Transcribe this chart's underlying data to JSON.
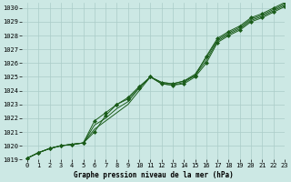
{
  "xlabel": "Graphe pression niveau de la mer (hPa)",
  "background_color": "#cce8e4",
  "grid_color": "#aaccc8",
  "line_color": "#1a5c1a",
  "xlim": [
    -0.5,
    23
  ],
  "ylim": [
    1019,
    1030.4
  ],
  "xticks": [
    0,
    1,
    2,
    3,
    4,
    5,
    6,
    7,
    8,
    9,
    10,
    11,
    12,
    13,
    14,
    15,
    16,
    17,
    18,
    19,
    20,
    21,
    22,
    23
  ],
  "yticks": [
    1019,
    1020,
    1021,
    1022,
    1023,
    1024,
    1025,
    1026,
    1027,
    1028,
    1029,
    1030
  ],
  "figsize": [
    3.2,
    2.0
  ],
  "dpi": 100,
  "series": [
    [
      1019.1,
      1019.5,
      1019.8,
      1020.0,
      1020.1,
      1020.2,
      1021.8,
      1022.4,
      1023.0,
      1023.4,
      1024.2,
      1025.0,
      1024.5,
      1024.4,
      1024.5,
      1025.0,
      1026.0,
      1027.5,
      1028.0,
      1028.4,
      1029.0,
      1029.3,
      1029.7,
      1030.1
    ],
    [
      1019.1,
      1019.5,
      1019.8,
      1020.0,
      1020.1,
      1020.2,
      1021.5,
      1022.0,
      1022.7,
      1023.2,
      1024.2,
      1025.0,
      1024.5,
      1024.4,
      1024.6,
      1025.1,
      1026.2,
      1027.6,
      1028.1,
      1028.5,
      1029.1,
      1029.4,
      1029.8,
      1030.2
    ],
    [
      1019.1,
      1019.5,
      1019.8,
      1020.0,
      1020.1,
      1020.2,
      1021.2,
      1021.8,
      1022.4,
      1023.0,
      1024.0,
      1025.0,
      1024.6,
      1024.5,
      1024.7,
      1025.2,
      1026.4,
      1027.7,
      1028.2,
      1028.6,
      1029.2,
      1029.5,
      1029.9,
      1030.3
    ],
    [
      1019.1,
      1019.5,
      1019.8,
      1020.0,
      1020.1,
      1020.2,
      1021.0,
      1022.2,
      1023.0,
      1023.5,
      1024.3,
      1025.0,
      1024.6,
      1024.5,
      1024.7,
      1025.1,
      1026.5,
      1027.8,
      1028.3,
      1028.7,
      1029.3,
      1029.6,
      1030.0,
      1030.4
    ]
  ],
  "marker_series": [
    0,
    3
  ],
  "marker": "D",
  "marker_size": 2.0,
  "tick_fontsize": 5,
  "xlabel_fontsize": 5.5,
  "linewidth": 0.7
}
